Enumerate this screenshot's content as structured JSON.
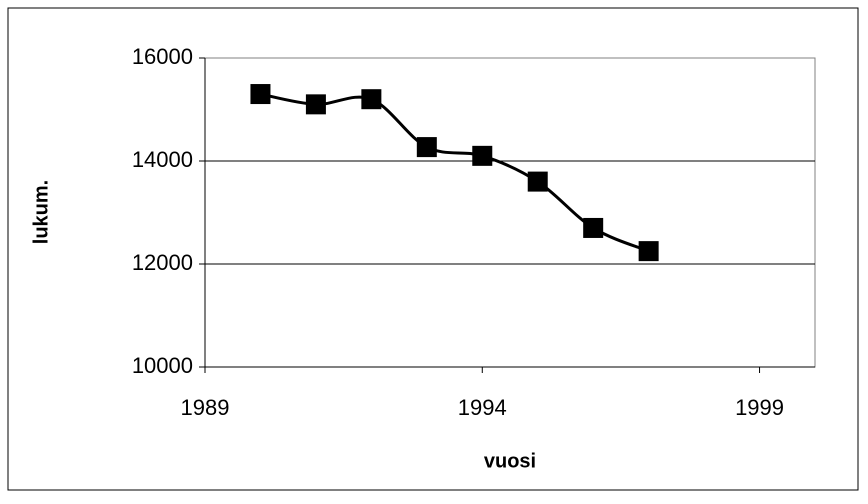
{
  "chart_data": {
    "type": "line",
    "x": [
      1990,
      1991,
      1992,
      1993,
      1994,
      1995,
      1996,
      1997
    ],
    "series": [
      {
        "name": null,
        "color": "#000000",
        "values": [
          15300,
          15100,
          15200,
          14270,
          14100,
          13600,
          12700,
          12250
        ]
      }
    ],
    "xlabel": "vuosi",
    "ylabel": "lukum.",
    "xlim": [
      1989,
      2000
    ],
    "xticks": [
      1989,
      1994,
      1999
    ],
    "ylim": [
      10000,
      16000
    ],
    "yticks": [
      10000,
      12000,
      14000,
      16000
    ],
    "grid": true,
    "smooth": true,
    "marker": "square"
  }
}
